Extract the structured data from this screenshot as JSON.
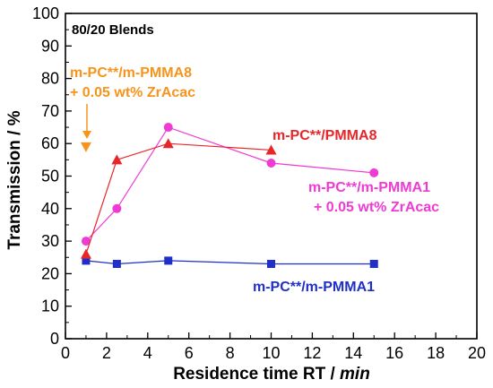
{
  "chart_data": {
    "type": "line",
    "title": "80/20 Blends",
    "xlabel_main": "Residence time RT / ",
    "xlabel_unit": "min",
    "ylabel": "Transmission / %",
    "xlim": [
      0,
      20
    ],
    "ylim": [
      0,
      100
    ],
    "xticks": [
      0,
      2,
      4,
      6,
      8,
      10,
      12,
      14,
      16,
      18,
      20
    ],
    "yticks": [
      0,
      10,
      20,
      30,
      40,
      50,
      60,
      70,
      80,
      90,
      100
    ],
    "grid": false,
    "legend": "none (inline annotations)",
    "series": [
      {
        "name": "m-PC**/PMMA8",
        "color": "#e8262a",
        "marker": "triangle-up",
        "x": [
          1,
          2.5,
          5,
          10
        ],
        "y": [
          26,
          55,
          60,
          58
        ]
      },
      {
        "name": "m-PC**/m-PMMA1 + 0.05 wt% ZrAcac",
        "color": "#ef3ad4",
        "marker": "circle",
        "x": [
          1,
          2.5,
          5,
          10,
          15
        ],
        "y": [
          30,
          40,
          65,
          54,
          51
        ]
      },
      {
        "name": "m-PC**/m-PMMA1",
        "color": "#1f2fc8",
        "marker": "square",
        "x": [
          1,
          2.5,
          5,
          10,
          15
        ],
        "y": [
          24,
          23,
          24,
          23,
          23
        ]
      },
      {
        "name": "m-PC**/m-PMMA8 + 0.05 wt% ZrAcac",
        "color": "#f7941d",
        "marker": "triangle-down",
        "x": [
          1
        ],
        "y": [
          59
        ]
      }
    ],
    "annotations": {
      "orange_line1": "m-PC**/m-PMMA8",
      "orange_line2": "+ 0.05 wt% ZrAcac",
      "red": "m-PC**/PMMA8",
      "magenta_line1": "m-PC**/m-PMMA1",
      "magenta_line2": "+ 0.05 wt% ZrAcac",
      "blue": "m-PC**/m-PMMA1"
    }
  }
}
